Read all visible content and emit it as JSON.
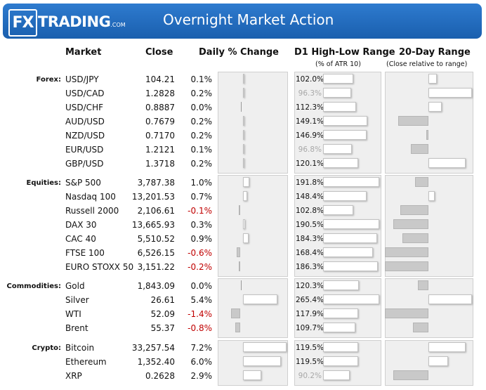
{
  "header": {
    "logo_fx": "FX",
    "logo_trading": "TRADING",
    "logo_com": ".COM",
    "title": "Overnight Market Action"
  },
  "columns": {
    "market": "Market",
    "close": "Close",
    "daily": "Daily % Change",
    "atr": "D1 High-Low Range",
    "atr_sub": "(% of ATR 10)",
    "range20": "20-Day Range",
    "range20_sub": "(Close relative to range)"
  },
  "colors": {
    "header_blue": "#1f6bbf",
    "negative": "#c00000",
    "muted": "#a8a8a8"
  },
  "groups": [
    {
      "name": "Forex:",
      "rows": [
        {
          "market": "USD/JPY",
          "close": "104.21",
          "change": "0.1%",
          "atr": "102.0%",
          "change_val": 0.1,
          "atr_val": 102.0,
          "range_pos": 0.2
        },
        {
          "market": "USD/CAD",
          "close": "1.2828",
          "change": "0.2%",
          "atr": "96.3%",
          "change_val": 0.2,
          "atr_val": 96.3,
          "range_pos": 1.0
        },
        {
          "market": "USD/CHF",
          "close": "0.8887",
          "change": "0.0%",
          "atr": "112.3%",
          "change_val": 0.0,
          "atr_val": 112.3,
          "range_pos": 0.3
        },
        {
          "market": "AUD/USD",
          "close": "0.7679",
          "change": "0.2%",
          "atr": "149.1%",
          "change_val": 0.2,
          "atr_val": 149.1,
          "range_pos": -0.7
        },
        {
          "market": "NZD/USD",
          "close": "0.7170",
          "change": "0.2%",
          "atr": "146.9%",
          "change_val": 0.2,
          "atr_val": 146.9,
          "range_pos": -0.05
        },
        {
          "market": "EUR/USD",
          "close": "1.2121",
          "change": "0.1%",
          "atr": "96.8%",
          "change_val": 0.1,
          "atr_val": 96.8,
          "range_pos": -0.4
        },
        {
          "market": "GBP/USD",
          "close": "1.3718",
          "change": "0.2%",
          "atr": "120.1%",
          "change_val": 0.2,
          "atr_val": 120.1,
          "range_pos": 0.85
        }
      ]
    },
    {
      "name": "Equities:",
      "rows": [
        {
          "market": "S&P 500",
          "close": "3,787.38",
          "change": "1.0%",
          "atr": "191.8%",
          "change_val": 1.0,
          "atr_val": 191.8,
          "range_pos": -0.3
        },
        {
          "market": "Nasdaq 100",
          "close": "13,201.53",
          "change": "0.7%",
          "atr": "148.4%",
          "change_val": 0.7,
          "atr_val": 148.4,
          "range_pos": 0.15
        },
        {
          "market": "Russell 2000",
          "close": "2,106.61",
          "change": "-0.1%",
          "atr": "102.8%",
          "change_val": -0.1,
          "atr_val": 102.8,
          "range_pos": -0.65
        },
        {
          "market": "DAX 30",
          "close": "13,665.93",
          "change": "0.3%",
          "atr": "190.5%",
          "change_val": 0.3,
          "atr_val": 190.5,
          "range_pos": -0.8
        },
        {
          "market": "CAC 40",
          "close": "5,510.52",
          "change": "0.9%",
          "atr": "184.3%",
          "change_val": 0.9,
          "atr_val": 184.3,
          "range_pos": -0.6
        },
        {
          "market": "FTSE 100",
          "close": "6,526.15",
          "change": "-0.6%",
          "atr": "168.4%",
          "change_val": -0.6,
          "atr_val": 168.4,
          "range_pos": -1.0
        },
        {
          "market": "EURO STOXX 50",
          "close": "3,151.22",
          "change": "-0.2%",
          "atr": "186.3%",
          "change_val": -0.2,
          "atr_val": 186.3,
          "range_pos": -1.0
        }
      ]
    },
    {
      "name": "Commodities:",
      "rows": [
        {
          "market": "Gold",
          "close": "1,843.09",
          "change": "0.0%",
          "atr": "120.3%",
          "change_val": 0.0,
          "atr_val": 120.3,
          "range_pos": -0.25
        },
        {
          "market": "Silver",
          "close": "26.61",
          "change": "5.4%",
          "atr": "265.4%",
          "change_val": 5.4,
          "atr_val": 265.4,
          "range_pos": 1.0
        },
        {
          "market": "WTI",
          "close": "52.09",
          "change": "-1.4%",
          "atr": "117.9%",
          "change_val": -1.4,
          "atr_val": 117.9,
          "range_pos": -1.0
        },
        {
          "market": "Brent",
          "close": "55.37",
          "change": "-0.8%",
          "atr": "109.7%",
          "change_val": -0.8,
          "atr_val": 109.7,
          "range_pos": -0.35
        }
      ]
    },
    {
      "name": "Crypto:",
      "rows": [
        {
          "market": "Bitcoin",
          "close": "33,257.54",
          "change": "7.2%",
          "atr": "119.5%",
          "change_val": 7.2,
          "atr_val": 119.5,
          "range_pos": 0.85
        },
        {
          "market": "Ethereum",
          "close": "1,352.40",
          "change": "6.0%",
          "atr": "119.5%",
          "change_val": 6.0,
          "atr_val": 119.5,
          "range_pos": 0.45
        },
        {
          "market": "XRP",
          "close": "0.2628",
          "change": "2.9%",
          "atr": "90.2%",
          "change_val": 2.9,
          "atr_val": 90.2,
          "range_pos": -0.8
        }
      ]
    }
  ]
}
